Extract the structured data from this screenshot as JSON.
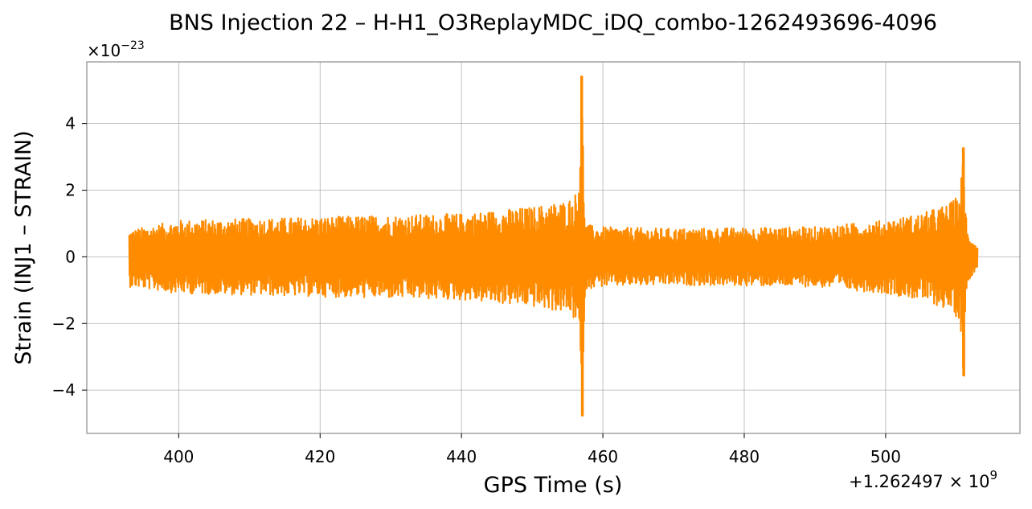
{
  "chart_data": {
    "type": "line",
    "title": "BNS Injection 22 – H-H1_O3ReplayMDC_iDQ_combo-1262493696-4096",
    "xlabel": "GPS Time (s)",
    "ylabel": "Strain (INJ1 – STRAIN)",
    "x_offset_label": "+1.262497 × 10",
    "x_offset_exponent": "9",
    "y_multiplier_label": "×10",
    "y_multiplier_exponent": "−23",
    "xlim": [
      387,
      519
    ],
    "ylim": [
      -5.3,
      5.85
    ],
    "xticks": [
      400,
      420,
      440,
      460,
      480,
      500
    ],
    "xtick_labels": [
      "400",
      "420",
      "440",
      "460",
      "480",
      "500"
    ],
    "yticks": [
      -4,
      -2,
      0,
      2,
      4
    ],
    "ytick_labels": [
      "−4",
      "−2",
      "0",
      "2",
      "4"
    ],
    "grid": true,
    "series": [
      {
        "color": "#ff8c00",
        "envelope": {
          "x": [
            393.0,
            400,
            420,
            440,
            450,
            455,
            456.5,
            457.0,
            457.5,
            459,
            470,
            490,
            500,
            505,
            509,
            510.5,
            511.0,
            511.5,
            513.0
          ],
          "upper": [
            0.8,
            1.1,
            1.2,
            1.3,
            1.5,
            1.7,
            2.0,
            5.4,
            1.0,
            0.9,
            0.85,
            0.9,
            1.1,
            1.3,
            1.6,
            1.9,
            3.25,
            0.8,
            0.3
          ],
          "lower": [
            -0.9,
            -1.1,
            -1.2,
            -1.3,
            -1.5,
            -1.7,
            -2.0,
            -4.75,
            -1.0,
            -0.9,
            -0.85,
            -0.9,
            -1.1,
            -1.3,
            -1.6,
            -1.9,
            -3.55,
            -0.8,
            -0.3
          ]
        },
        "peaks": [
          {
            "x": 457.0,
            "y": 5.4
          },
          {
            "x": 457.1,
            "y": -4.75
          },
          {
            "x": 511.0,
            "y": 3.25
          },
          {
            "x": 511.05,
            "y": -3.55
          }
        ]
      }
    ]
  }
}
